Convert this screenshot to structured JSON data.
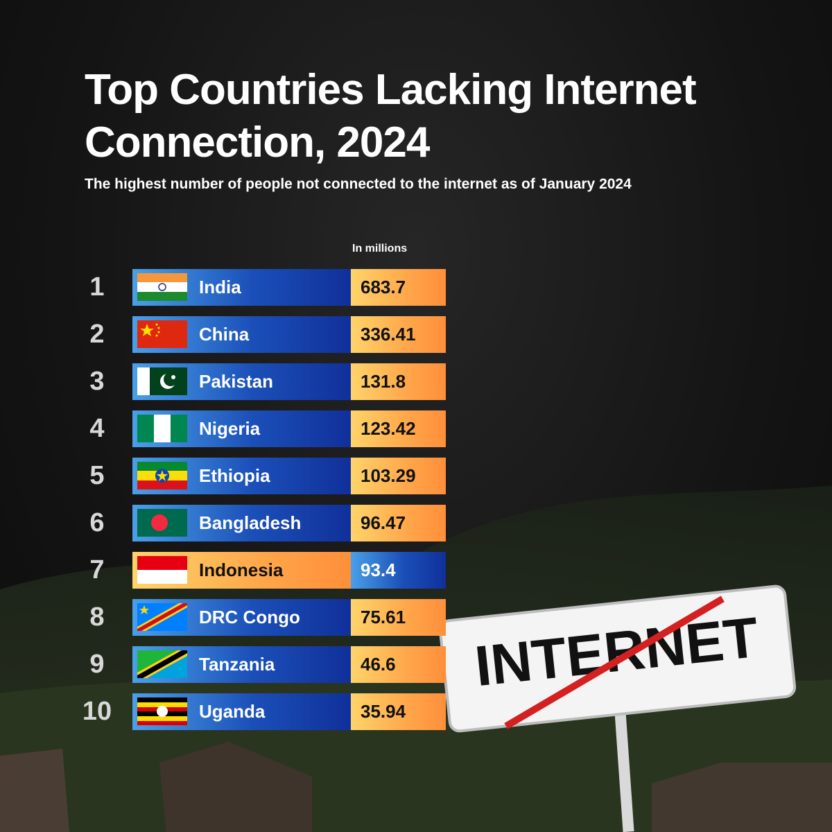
{
  "header": {
    "title": "Top Countries Lacking Internet Connection, 2024",
    "subtitle": "The highest number of people not connected to the internet as of January 2024",
    "unit": "In millions"
  },
  "table": {
    "rows": [
      {
        "rank": 1,
        "country": "India",
        "value": 683.7
      },
      {
        "rank": 2,
        "country": "China",
        "value": 336.41
      },
      {
        "rank": 3,
        "country": "Pakistan",
        "value": 131.8
      },
      {
        "rank": 4,
        "country": "Nigeria",
        "value": 123.42
      },
      {
        "rank": 5,
        "country": "Ethiopia",
        "value": 103.29
      },
      {
        "rank": 6,
        "country": "Bangladesh",
        "value": 96.47
      },
      {
        "rank": 7,
        "country": "Indonesia",
        "value": 93.4
      },
      {
        "rank": 8,
        "country": "DRC Congo",
        "value": 75.61
      },
      {
        "rank": 9,
        "country": "Tanzania",
        "value": 46.6
      },
      {
        "rank": 10,
        "country": "Uganda",
        "value": 35.94
      }
    ]
  },
  "sign": {
    "text": "INTERNET"
  }
}
